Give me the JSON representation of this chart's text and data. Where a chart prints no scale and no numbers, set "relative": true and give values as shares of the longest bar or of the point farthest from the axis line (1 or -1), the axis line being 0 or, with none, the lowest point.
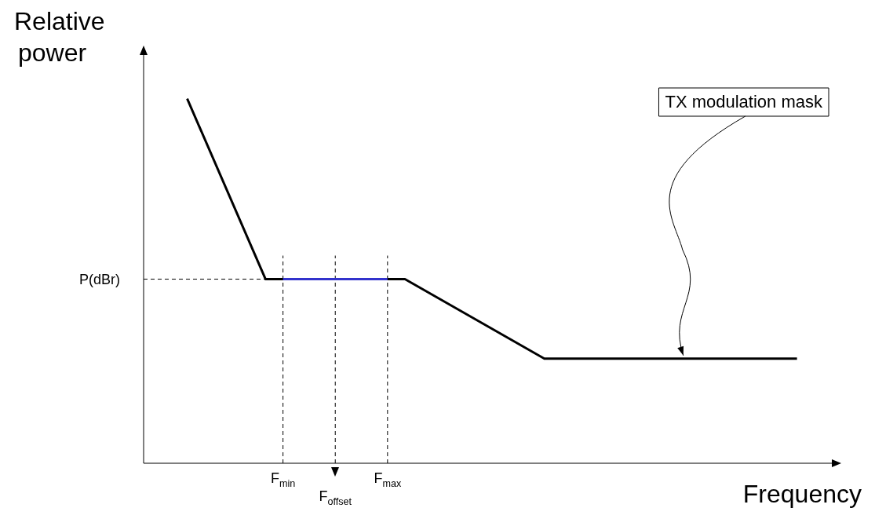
{
  "chart_data": {
    "type": "line",
    "relative": true,
    "xlabel": "Frequency",
    "ylabel": "Relative power",
    "categories": [
      null,
      null,
      null,
      null,
      null,
      null,
      null,
      null,
      null,
      null,
      null,
      null,
      null,
      null,
      null,
      null,
      "F$_{min}$",
      null,
      null,
      null,
      null,
      null,
      "F$_{offset}$",
      null,
      null,
      null,
      null,
      null,
      "F$_{max}$",
      null,
      null,
      null,
      null,
      null,
      null,
      null,
      null,
      null,
      null,
      null,
      null,
      null,
      null,
      null,
      null,
      null,
      null,
      null,
      null,
      null,
      null,
      null,
      null,
      null,
      null,
      null,
      null,
      null,
      null,
      null,
      null,
      null,
      null,
      null,
      null,
      null,
      null,
      null,
      null,
      null,
      null,
      null,
      null,
      null,
      null,
      null,
      null,
      null,
      null,
      null
    ],
    "series": [
      {
        "color": "#000000",
        "values": [
          null,
          null,
          null,
          null,
          null,
          1,
          null,
          null,
          null,
          null,
          null,
          null,
          null,
          null,
          0.505,
          null,
          null,
          null,
          null,
          null,
          null,
          null,
          null,
          null,
          null,
          null,
          null,
          null,
          null,
          null,
          0.505,
          null,
          null,
          null,
          null,
          null,
          null,
          null,
          null,
          null,
          null,
          null,
          null,
          null,
          null,
          null,
          0.287,
          null,
          null,
          null,
          null,
          null,
          null,
          null,
          null,
          null,
          null,
          null,
          null,
          null,
          null,
          null,
          null,
          null,
          null,
          null,
          null,
          null,
          null,
          null,
          null,
          null,
          null,
          null,
          null,
          0.287,
          null,
          null,
          null,
          null
        ]
      },
      {
        "color": "#3333cc",
        "values": [
          null,
          null,
          null,
          null,
          null,
          null,
          null,
          null,
          null,
          null,
          null,
          null,
          null,
          null,
          null,
          null,
          0.505,
          null,
          null,
          null,
          null,
          null,
          null,
          null,
          null,
          null,
          null,
          null,
          0.505,
          null,
          null,
          null,
          null,
          null,
          null,
          null,
          null,
          null,
          null,
          null,
          null,
          null,
          null,
          null,
          null,
          null,
          null,
          null,
          null,
          null,
          null,
          null,
          null,
          null,
          null,
          null,
          null,
          null,
          null,
          null,
          null,
          null,
          null,
          null,
          null,
          null,
          null,
          null,
          null,
          null,
          null,
          null,
          null,
          null,
          null,
          null,
          null,
          null,
          null,
          null
        ]
      }
    ],
    "ref_lines": [
      {
        "axis": "y",
        "value": 0.505,
        "label": "P(dBr)",
        "line_style": "dashed"
      },
      {
        "axis": "x",
        "value": "F$_{min}$",
        "line_style": "dashed"
      },
      {
        "axis": "x",
        "value": "F$_{offset}$",
        "line_style": "dashed"
      },
      {
        "axis": "x",
        "value": "F$_{max}$",
        "line_style": "dashed"
      }
    ],
    "annotations": [
      "TX modulation mask"
    ],
    "legend": false,
    "marker": "none",
    "line_style": "solid"
  }
}
